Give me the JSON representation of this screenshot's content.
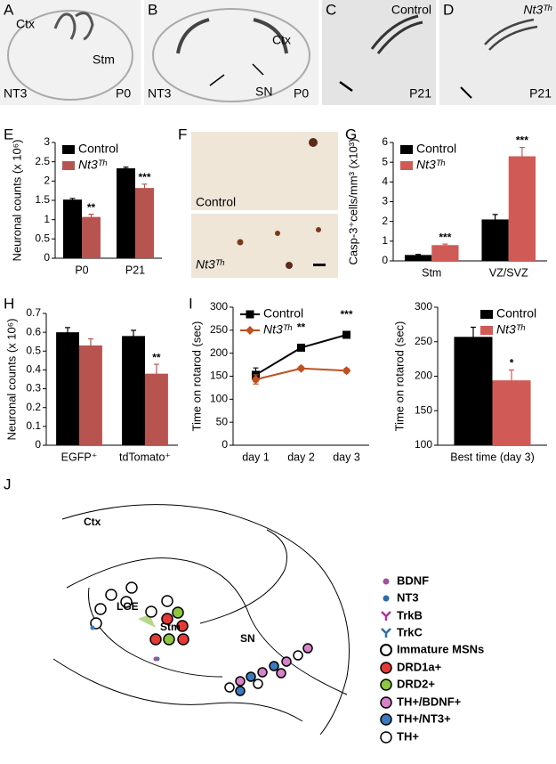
{
  "panel_labels": [
    "A",
    "B",
    "C",
    "D",
    "E",
    "F",
    "G",
    "H",
    "I",
    "J"
  ],
  "images": {
    "A": {
      "labels": [
        "Ctx",
        "Stm",
        "NT3",
        "P0"
      ]
    },
    "B": {
      "labels": [
        "Ctx",
        "NT3",
        "SN",
        "P0"
      ]
    },
    "C": {
      "labels": [
        "Control",
        "P21"
      ]
    },
    "D": {
      "labels": [
        "Nt3ᵀʰ",
        "P21"
      ]
    },
    "F": {
      "labels": [
        "Control",
        "Nt3ᵀʰ"
      ]
    }
  },
  "chart_data": [
    {
      "type": "bar",
      "ylabel": "Neuronal counts (x 10⁶)",
      "categories": [
        "P0",
        "P21"
      ],
      "series": [
        {
          "name": "Control",
          "color": "#000000",
          "values": [
            1.52,
            2.33
          ],
          "errors": [
            0.03,
            0.03
          ]
        },
        {
          "name": "Nt3ᵀʰ",
          "color": "#b85450",
          "values": [
            1.07,
            1.82
          ],
          "errors": [
            0.07,
            0.1
          ],
          "significance": [
            "**",
            "***"
          ]
        }
      ],
      "ylim": [
        0,
        3
      ],
      "yticks": [
        0,
        0.5,
        1,
        1.5,
        2,
        2.5,
        3
      ],
      "legend": "upper left"
    },
    {
      "type": "bar",
      "ylabel": "Casp-3⁺cells/mm³ (x10³)",
      "categories": [
        "Stm",
        "VZ/SVZ"
      ],
      "series": [
        {
          "name": "Control",
          "color": "#000000",
          "values": [
            0.3,
            2.1
          ],
          "errors": [
            0.03,
            0.25
          ]
        },
        {
          "name": "Nt3ᵀʰ",
          "color": "#d05a55",
          "values": [
            0.8,
            5.3
          ],
          "errors": [
            0.05,
            0.45
          ],
          "significance": [
            "***",
            "***"
          ]
        }
      ],
      "ylim": [
        0,
        6
      ],
      "yticks": [
        0,
        1,
        2,
        3,
        4,
        5,
        6
      ],
      "legend": "upper left"
    },
    {
      "type": "bar",
      "ylabel": "Neuronal counts (x 10⁶)",
      "categories": [
        "EGFP⁺",
        "tdTomato⁺"
      ],
      "series": [
        {
          "name": "Control",
          "color": "#000000",
          "values": [
            0.6,
            0.58
          ],
          "errors": [
            0.025,
            0.03
          ]
        },
        {
          "name": "Nt3ᵀʰ",
          "color": "#b85450",
          "values": [
            0.53,
            0.38
          ],
          "errors": [
            0.035,
            0.05
          ],
          "significance": [
            null,
            "**"
          ]
        }
      ],
      "ylim": [
        0,
        0.7
      ],
      "yticks": [
        0,
        0.1,
        0.2,
        0.3,
        0.4,
        0.5,
        0.6,
        0.7
      ]
    },
    {
      "type": "line",
      "ylabel": "Time on rotarod (sec)",
      "categories": [
        "day 1",
        "day 2",
        "day 3"
      ],
      "series": [
        {
          "name": "Control",
          "color": "#000000",
          "marker": "square",
          "values": [
            153,
            212,
            240
          ],
          "errors": [
            15,
            6,
            7
          ]
        },
        {
          "name": "Nt3ᵀʰ",
          "color": "#c0501f",
          "marker": "diamond",
          "values": [
            143,
            167,
            162
          ],
          "errors": [
            10,
            4,
            5
          ],
          "significance": [
            null,
            "**",
            "***"
          ]
        }
      ],
      "ylim": [
        0,
        300
      ],
      "yticks": [
        0,
        50,
        100,
        150,
        200,
        250,
        300
      ],
      "legend": "upper left"
    },
    {
      "type": "bar",
      "ylabel": "Time on rotarod (sec)",
      "categories": [
        "Best time (day 3)"
      ],
      "series": [
        {
          "name": "Control",
          "color": "#000000",
          "values": [
            257
          ],
          "errors": [
            14
          ]
        },
        {
          "name": "Nt3ᵀʰ",
          "color": "#d05a55",
          "values": [
            194
          ],
          "errors": [
            15
          ],
          "significance": [
            "*"
          ]
        }
      ],
      "ylim": [
        100,
        300
      ],
      "yticks": [
        100,
        150,
        200,
        250,
        300
      ],
      "legend": "upper right"
    }
  ],
  "diagram": {
    "regions": [
      "Ctx",
      "LGE",
      "Stm",
      "SN"
    ],
    "legend": [
      "BDNF",
      "NT3",
      "TrkB",
      "TrkC",
      "Immature MSNs",
      "DRD1a+",
      "DRD2+",
      "TH+/BDNF+",
      "TH+/NT3+",
      "TH+"
    ]
  }
}
